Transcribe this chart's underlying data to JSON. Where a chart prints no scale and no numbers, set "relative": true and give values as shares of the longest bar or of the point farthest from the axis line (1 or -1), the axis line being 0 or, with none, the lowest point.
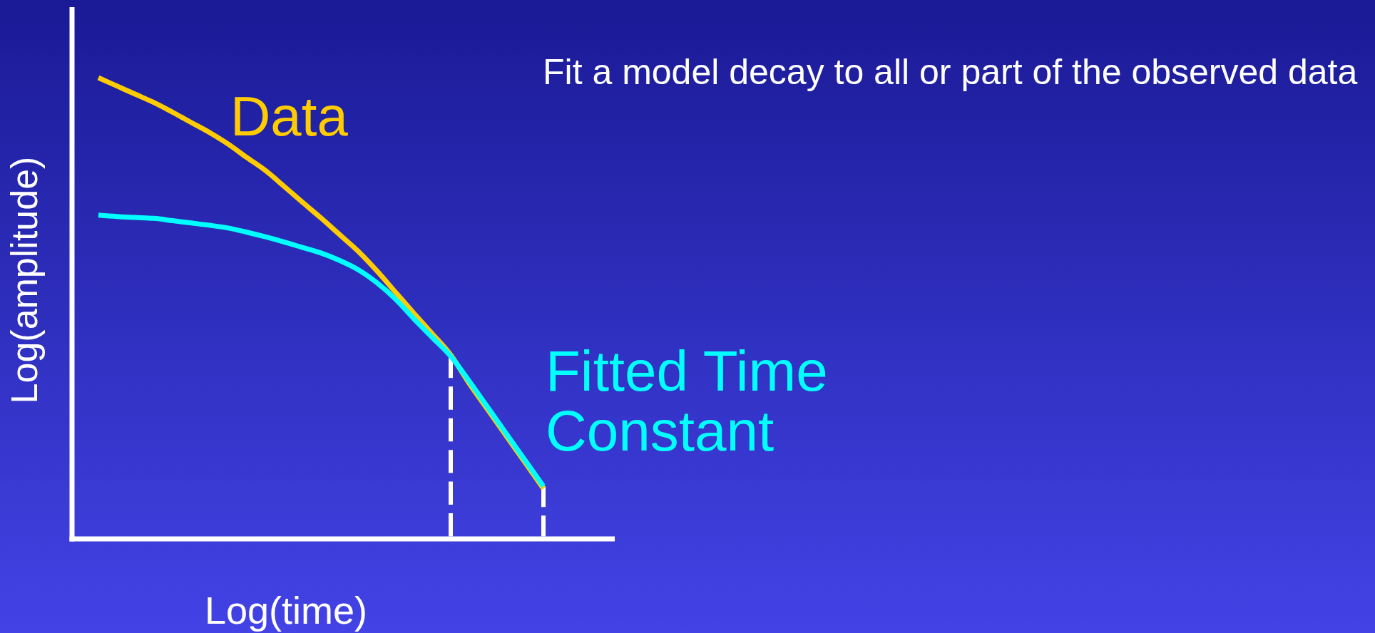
{
  "chart_data": {
    "type": "line",
    "title": "Fit a model decay to all or part of the observed data",
    "xlabel": "Log(time)",
    "ylabel": "Log(amplitude)",
    "relative": true,
    "categories": [
      null,
      null,
      null,
      null,
      null,
      null,
      null,
      null,
      null,
      null,
      null,
      null,
      null,
      null,
      null,
      null,
      null,
      null,
      null,
      null,
      null,
      null,
      null,
      null,
      null
    ],
    "series": [
      {
        "name": "Data",
        "color": "#ffcc00",
        "values": [
          1,
          0.982,
          0.964,
          0.946,
          0.925,
          0.903,
          0.881,
          0.856,
          0.827,
          0.799,
          0.765,
          0.73,
          0.696,
          0.66,
          0.624,
          0.582,
          0.536,
          0.49,
          0.445,
          0.399,
          0.337,
          0.28,
          0.223,
          0.166,
          0.109
        ]
      },
      {
        "name": "Fitted Time Constant",
        "color": "#00ffff",
        "values": [
          0.702,
          0.699,
          0.697,
          0.695,
          0.69,
          0.685,
          0.68,
          0.674,
          0.665,
          0.655,
          0.644,
          0.632,
          0.62,
          0.604,
          0.584,
          0.556,
          0.521,
          0.478,
          0.437,
          0.396,
          0.342,
          0.285,
          0.228,
          0.171,
          0.114
        ]
      }
    ]
  }
}
